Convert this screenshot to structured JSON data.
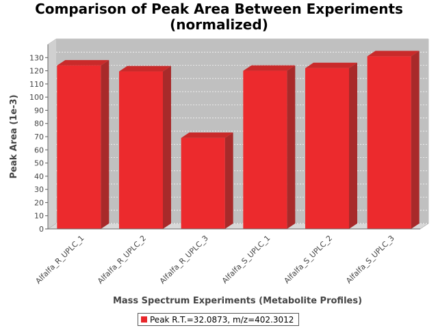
{
  "chart_data": {
    "type": "bar",
    "title": "Comparison of Peak Area Between Experiments",
    "subtitle": "(normalized)",
    "xlabel": "Mass Spectrum Experiments (Metabolite Profiles)",
    "ylabel": "Peak Area (1e-3)",
    "categories": [
      "Alfalfa_R_UPLC_1",
      "Alfalfa_R_UPLC_2",
      "Alfalfa_R_UPLC_3",
      "Alfalfa_S_UPLC_1",
      "Alfalfa_S_UPLC_2",
      "Alfalfa_S_UPLC_3"
    ],
    "series": [
      {
        "name": "Peak R.T.=32.0873, m/z=402.3012",
        "values": [
          124,
          119.5,
          69,
          120,
          122,
          131
        ]
      }
    ],
    "ylim": [
      0,
      140
    ],
    "yticks": [
      0,
      10,
      20,
      30,
      40,
      50,
      60,
      70,
      80,
      90,
      100,
      110,
      120,
      130
    ],
    "grid": true,
    "legend_position": "bottom",
    "colors": {
      "bar_front": "#ec2a2d",
      "bar_side": "#a82a2a",
      "bar_top": "#c92a2a",
      "plot_bg": "#c0c0c0"
    }
  }
}
